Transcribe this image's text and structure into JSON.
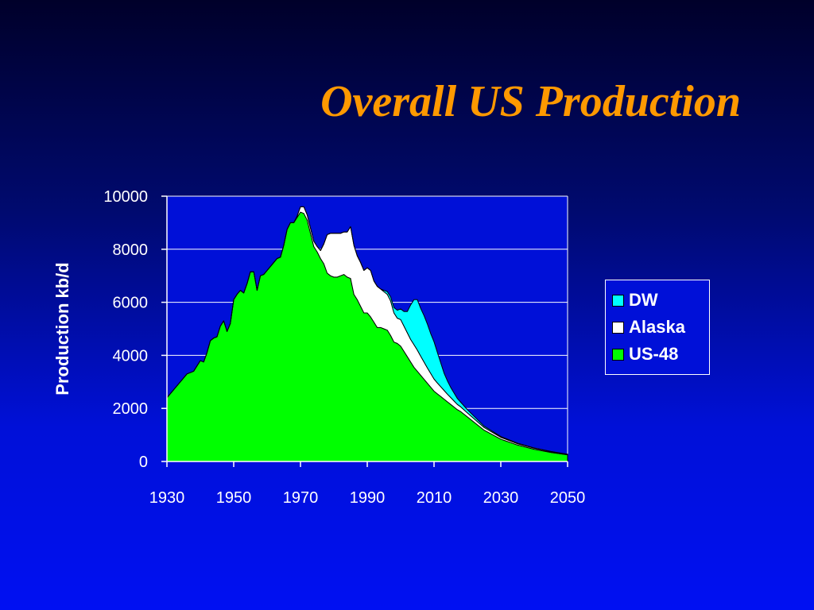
{
  "slide": {
    "title": "Overall US Production"
  },
  "chart_data": {
    "type": "area",
    "stacked": true,
    "ylabel": "Production kb/d",
    "xlabel": "",
    "xlim": [
      1930,
      2050
    ],
    "ylim": [
      0,
      10000
    ],
    "x_ticks": [
      1930,
      1950,
      1970,
      1990,
      2010,
      2030,
      2050
    ],
    "x_tick_labels": [
      "1930",
      "1950",
      "1970",
      "1990",
      "2010",
      "2030",
      "2050"
    ],
    "y_ticks": [
      0,
      2000,
      4000,
      6000,
      8000,
      10000
    ],
    "y_tick_labels": [
      "0",
      "2000",
      "4000",
      "6000",
      "8000",
      "10000"
    ],
    "grid": "horizontal",
    "legend_position": "right",
    "legend": [
      "DW",
      "Alaska",
      "US-48"
    ],
    "colors": {
      "DW": "#00ffff",
      "Alaska": "#ffffff",
      "US-48": "#00ff00"
    },
    "x": [
      1930,
      1932,
      1934,
      1936,
      1938,
      1940,
      1941,
      1942,
      1943,
      1944,
      1945,
      1946,
      1947,
      1948,
      1949,
      1950,
      1951,
      1952,
      1953,
      1954,
      1955,
      1956,
      1957,
      1958,
      1959,
      1960,
      1961,
      1962,
      1963,
      1964,
      1965,
      1966,
      1967,
      1968,
      1969,
      1970,
      1971,
      1972,
      1973,
      1974,
      1975,
      1976,
      1977,
      1978,
      1979,
      1980,
      1981,
      1982,
      1983,
      1984,
      1985,
      1986,
      1987,
      1988,
      1989,
      1990,
      1991,
      1992,
      1993,
      1994,
      1995,
      1996,
      1997,
      1998,
      1999,
      2000,
      2001,
      2002,
      2003,
      2004,
      2005,
      2006,
      2007,
      2008,
      2009,
      2010,
      2011,
      2012,
      2013,
      2014,
      2015,
      2016,
      2017,
      2018,
      2020,
      2025,
      2030,
      2035,
      2040,
      2045,
      2050
    ],
    "series": [
      {
        "name": "US-48",
        "values": [
          2400,
          2700,
          3000,
          3300,
          3400,
          3800,
          3750,
          4100,
          4550,
          4650,
          4700,
          5100,
          5300,
          4900,
          5200,
          6100,
          6300,
          6450,
          6350,
          6700,
          7150,
          7150,
          6450,
          7000,
          7050,
          7200,
          7350,
          7500,
          7650,
          7700,
          8150,
          8750,
          9000,
          9000,
          9200,
          9400,
          9350,
          9100,
          8600,
          8100,
          7900,
          7650,
          7450,
          7100,
          7000,
          6950,
          6950,
          7000,
          7050,
          6950,
          6900,
          6300,
          6100,
          5850,
          5600,
          5600,
          5450,
          5250,
          5050,
          5050,
          5000,
          4950,
          4750,
          4500,
          4450,
          4350,
          4150,
          3950,
          3750,
          3550,
          3400,
          3250,
          3100,
          2950,
          2800,
          2650,
          2550,
          2450,
          2350,
          2250,
          2150,
          2050,
          1950,
          1880,
          1680,
          1180,
          840,
          620,
          460,
          340,
          250
        ]
      },
      {
        "name": "Alaska",
        "values": [
          0,
          0,
          0,
          0,
          0,
          0,
          0,
          0,
          0,
          0,
          0,
          0,
          0,
          0,
          0,
          0,
          0,
          0,
          0,
          0,
          0,
          0,
          0,
          0,
          0,
          0,
          0,
          0,
          0,
          0,
          0,
          0,
          0,
          0,
          50,
          200,
          250,
          200,
          200,
          200,
          200,
          300,
          750,
          1450,
          1600,
          1650,
          1650,
          1600,
          1600,
          1700,
          1950,
          1850,
          1650,
          1650,
          1600,
          1700,
          1750,
          1550,
          1550,
          1450,
          1400,
          1350,
          1300,
          1100,
          950,
          1000,
          950,
          900,
          850,
          850,
          800,
          720,
          650,
          580,
          520,
          460,
          410,
          370,
          330,
          290,
          260,
          230,
          200,
          180,
          150,
          100,
          70,
          50,
          40,
          30,
          20
        ]
      },
      {
        "name": "DW",
        "values": [
          0,
          0,
          0,
          0,
          0,
          0,
          0,
          0,
          0,
          0,
          0,
          0,
          0,
          0,
          0,
          0,
          0,
          0,
          0,
          0,
          0,
          0,
          0,
          0,
          0,
          0,
          0,
          0,
          0,
          0,
          0,
          0,
          0,
          0,
          0,
          0,
          0,
          0,
          0,
          0,
          0,
          0,
          0,
          0,
          0,
          0,
          0,
          0,
          0,
          0,
          0,
          0,
          0,
          0,
          0,
          0,
          0,
          0,
          0,
          0,
          50,
          100,
          150,
          200,
          300,
          400,
          550,
          800,
          1300,
          1700,
          1900,
          1800,
          1750,
          1650,
          1500,
          1400,
          1150,
          900,
          650,
          500,
          380,
          300,
          220,
          170,
          120,
          50,
          30,
          20,
          10,
          10,
          5
        ]
      }
    ]
  }
}
